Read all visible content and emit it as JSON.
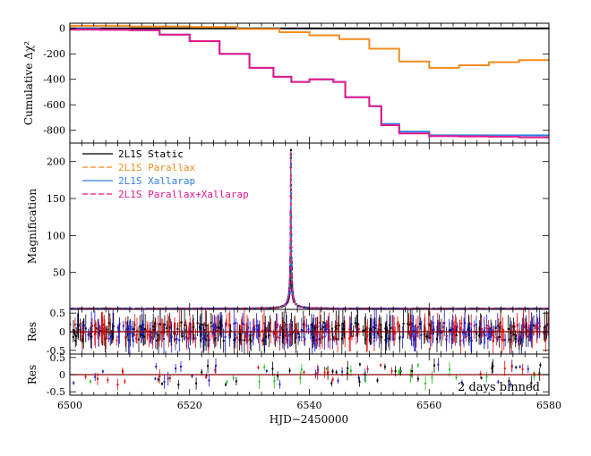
{
  "colors": {
    "static": "#000000",
    "parallax": "#f28c1e",
    "xallarap": "#2e7fe0",
    "parallax_xallarap": "#e6198c",
    "data_black": "#000000",
    "data_red": "#e01010",
    "data_blue": "#1a1acc",
    "data_green": "#20c020",
    "zero_line": "#8b0000"
  },
  "chart_data": [
    {
      "type": "line",
      "panel": "cumulative",
      "ylabel": "Cumulative Δχ²",
      "xlim": [
        6500,
        6580
      ],
      "ylim": [
        -900,
        40
      ],
      "y_ticks": [
        0,
        -200,
        -400,
        -600,
        -800
      ],
      "series": [
        {
          "key": "static",
          "x": [
            6500,
            6580
          ],
          "y": [
            0,
            0
          ]
        },
        {
          "key": "parallax",
          "x": [
            6500,
            6510,
            6520,
            6528,
            6535,
            6540,
            6545,
            6550,
            6555,
            6560,
            6565,
            6570,
            6575,
            6580
          ],
          "y": [
            20,
            15,
            10,
            -5,
            -30,
            -55,
            -85,
            -160,
            -260,
            -310,
            -290,
            -265,
            -250,
            -240
          ]
        },
        {
          "key": "xallarap",
          "x": [
            6500,
            6505,
            6510,
            6515,
            6520,
            6525,
            6530,
            6534,
            6537,
            6540,
            6544,
            6546,
            6550,
            6552,
            6555,
            6560,
            6565,
            6570,
            6575,
            6580
          ],
          "y": [
            -5,
            -10,
            -15,
            -50,
            -100,
            -200,
            -310,
            -380,
            -420,
            -400,
            -420,
            -540,
            -610,
            -750,
            -810,
            -840,
            -840,
            -840,
            -840,
            -840
          ]
        },
        {
          "key": "parallax_xallarap",
          "x": [
            6500,
            6505,
            6510,
            6515,
            6520,
            6525,
            6530,
            6534,
            6537,
            6540,
            6544,
            6546,
            6550,
            6552,
            6555,
            6560,
            6565,
            6570,
            6575,
            6580
          ],
          "y": [
            -10,
            -12,
            -15,
            -50,
            -100,
            -200,
            -310,
            -380,
            -420,
            -400,
            -420,
            -540,
            -610,
            -760,
            -825,
            -845,
            -848,
            -850,
            -855,
            -860
          ]
        }
      ]
    },
    {
      "type": "line",
      "panel": "magnification",
      "ylabel": "Magnification",
      "xlim": [
        6500,
        6580
      ],
      "ylim": [
        0,
        225
      ],
      "y_ticks": [
        50,
        100,
        150,
        200
      ],
      "peak": {
        "t0": 6536.9,
        "amax": 215,
        "tE": 1.0
      },
      "legend": [
        {
          "key": "static",
          "label": "2L1S Static",
          "style": "solid"
        },
        {
          "key": "parallax",
          "label": "2L1S Parallax",
          "style": "dashed"
        },
        {
          "key": "xallarap",
          "label": "2L1S Xallarap",
          "style": "solid"
        },
        {
          "key": "parallax_xallarap",
          "label": "2L1S Parallax+Xallarap",
          "style": "dashed"
        }
      ]
    },
    {
      "type": "scatter",
      "panel": "residuals",
      "ylabel": "Res",
      "xlim": [
        6500,
        6580
      ],
      "ylim": [
        -0.6,
        0.6
      ],
      "y_ticks": [
        0.5,
        0,
        -0.5
      ]
    },
    {
      "type": "scatter",
      "panel": "residuals_binned",
      "ylabel": "Res",
      "xlabel": "HJD−2450000",
      "xlim": [
        6500,
        6580
      ],
      "ylim": [
        -0.6,
        0.6
      ],
      "y_ticks": [
        0.5,
        0,
        -0.5
      ],
      "x_ticks": [
        6500,
        6520,
        6540,
        6560,
        6580
      ],
      "annotation": "2 days binned"
    }
  ]
}
